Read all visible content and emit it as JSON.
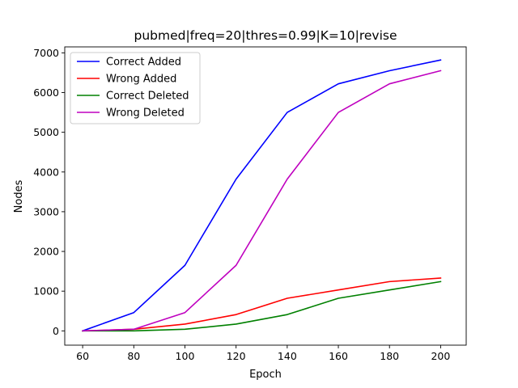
{
  "chart_data": {
    "type": "line",
    "title": "pubmed|freq=20|thres=0.99|K=10|revise",
    "xlabel": "Epoch",
    "ylabel": "Nodes",
    "x": [
      60,
      80,
      100,
      120,
      140,
      160,
      180,
      200
    ],
    "xticks": [
      "60",
      "80",
      "100",
      "120",
      "140",
      "160",
      "180",
      "200"
    ],
    "yticks": [
      "0",
      "1000",
      "2000",
      "3000",
      "4000",
      "5000",
      "6000",
      "7000"
    ],
    "xlim": [
      53,
      210
    ],
    "ylim": [
      -360,
      7150
    ],
    "grid": false,
    "legend_position": "upper-left",
    "series": [
      {
        "name": "Correct Added",
        "color": "#0000ff",
        "values": [
          0,
          460,
          1650,
          3820,
          5500,
          6220,
          6550,
          6820
        ]
      },
      {
        "name": "Wrong Added",
        "color": "#ff0000",
        "values": [
          0,
          40,
          170,
          410,
          820,
          1030,
          1240,
          1330
        ]
      },
      {
        "name": "Correct Deleted",
        "color": "#008000",
        "values": [
          0,
          0,
          40,
          170,
          410,
          820,
          1030,
          1240
        ]
      },
      {
        "name": "Wrong Deleted",
        "color": "#bf00bf",
        "values": [
          0,
          40,
          460,
          1650,
          3820,
          5500,
          6220,
          6550
        ]
      }
    ]
  }
}
